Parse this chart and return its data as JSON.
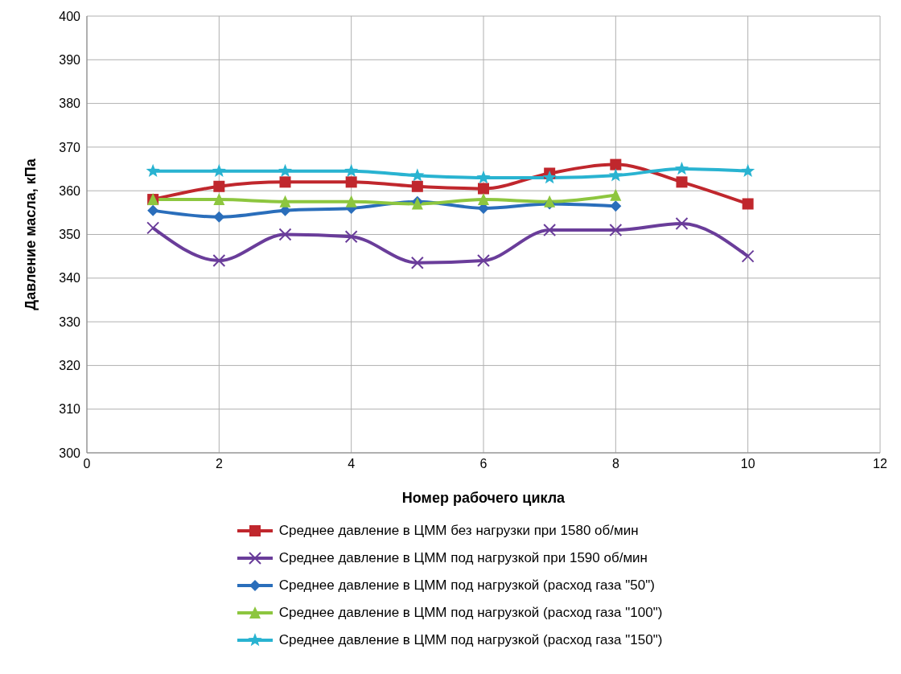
{
  "chart_data": {
    "type": "line",
    "xlabel": "Номер рабочего цикла",
    "ylabel": "Давление масла, кПа",
    "x": [
      1,
      2,
      3,
      4,
      5,
      6,
      7,
      8,
      9,
      10
    ],
    "series": [
      {
        "name": "Среднее давление в ЦММ без нагрузки при 1580 об/мин",
        "color": "#c0272d",
        "marker": "square",
        "values": [
          358,
          361,
          362,
          362,
          361,
          360.5,
          364,
          366,
          362,
          357
        ]
      },
      {
        "name": "Среднее давление в ЦММ под нагрузкой при 1590 об/мин",
        "color": "#6a3d9a",
        "marker": "cross",
        "values": [
          351.5,
          344,
          350,
          349.5,
          343.5,
          344,
          351,
          351,
          352.5,
          345
        ]
      },
      {
        "name": "Среднее давление в ЦММ под нагрузкой (расход газа \"50\")",
        "color": "#2a6ebb",
        "marker": "diamond",
        "values": [
          355.5,
          354,
          355.5,
          356,
          357.5,
          356,
          357,
          356.5,
          null,
          null
        ]
      },
      {
        "name": "Среднее давление в ЦММ под нагрузкой (расход газа \"100\")",
        "color": "#8dc63f",
        "marker": "triangle",
        "values": [
          358,
          358,
          357.5,
          357.5,
          357,
          358,
          357.5,
          359,
          null,
          null
        ]
      },
      {
        "name": "Среднее давление в ЦММ под нагрузкой (расход газа \"150\")",
        "color": "#29b3d1",
        "marker": "star",
        "values": [
          364.5,
          364.5,
          364.5,
          364.5,
          363.5,
          363,
          363,
          363.5,
          365,
          364.5
        ]
      }
    ],
    "xlim": [
      0,
      12
    ],
    "xticks": [
      0,
      2,
      4,
      6,
      8,
      10,
      12
    ],
    "ylim": [
      300,
      400
    ],
    "yticks": [
      300,
      310,
      320,
      330,
      340,
      350,
      360,
      370,
      380,
      390,
      400
    ],
    "grid": true,
    "legend": "bottom",
    "line_style": "solid"
  }
}
